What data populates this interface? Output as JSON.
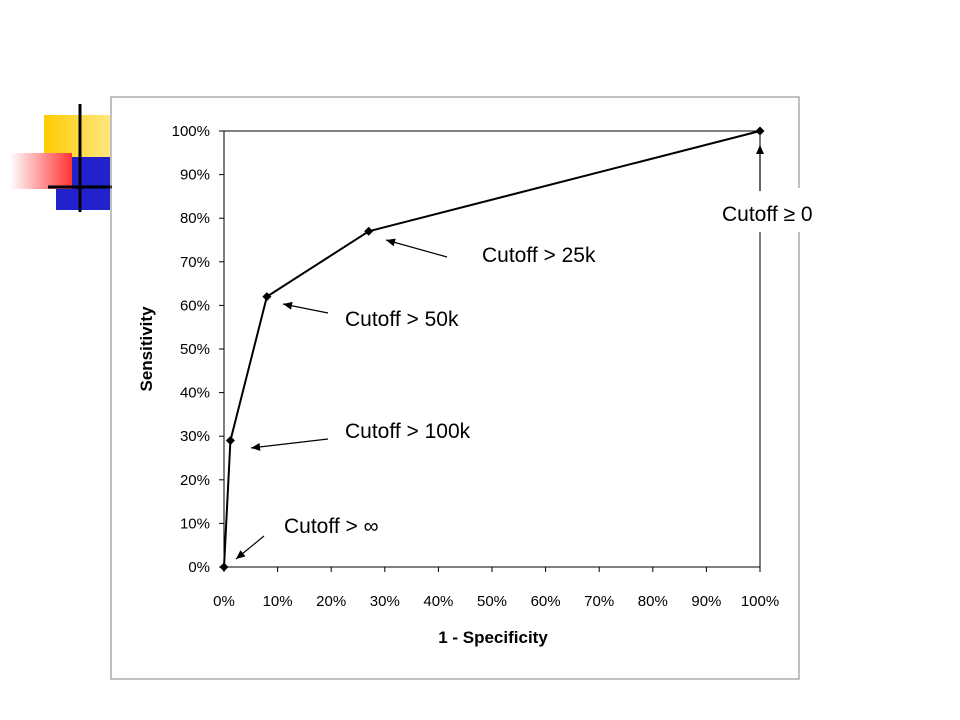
{
  "chart_data": {
    "type": "line",
    "title": "",
    "xlabel": "1 - Specificity",
    "ylabel": "Sensitivity",
    "xlim": [
      0,
      100
    ],
    "ylim": [
      0,
      100
    ],
    "x_ticks": [
      "0%",
      "10%",
      "20%",
      "30%",
      "40%",
      "50%",
      "60%",
      "70%",
      "80%",
      "90%",
      "100%"
    ],
    "y_ticks": [
      "0%",
      "10%",
      "20%",
      "30%",
      "40%",
      "50%",
      "60%",
      "70%",
      "80%",
      "90%",
      "100%"
    ],
    "series": [
      {
        "x": [
          0,
          1.2,
          8,
          27,
          100
        ],
        "y": [
          0,
          29,
          62,
          77,
          100
        ]
      }
    ],
    "annotations": [
      {
        "text": "Cutoff > ∞",
        "point": 0
      },
      {
        "text": "Cutoff > 100k",
        "point": 1
      },
      {
        "text": "Cutoff > 50k",
        "point": 2
      },
      {
        "text": "Cutoff > 25k",
        "point": 3
      },
      {
        "text": "Cutoff ≥ 0",
        "point": 4
      }
    ],
    "grid": false,
    "legend": "none",
    "colors": {
      "line": "#000000",
      "marker": "#000000",
      "frame": "#808080"
    }
  },
  "decoration": {
    "colors": [
      "#ffcc00",
      "#2222cc",
      "#ff3333"
    ]
  }
}
